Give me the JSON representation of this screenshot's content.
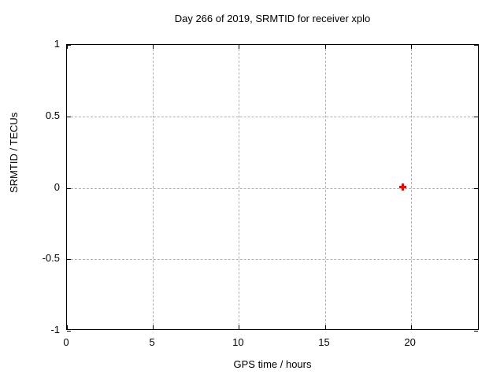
{
  "title": "Day 266 of 2019, SRMTID for receiver xplo",
  "chart_data": {
    "type": "scatter",
    "title": "Day 266 of 2019, SRMTID for receiver xplo",
    "xlabel": "GPS time / hours",
    "ylabel": "SRMTID / TECUs",
    "xlim": [
      0,
      24
    ],
    "ylim": [
      -1,
      1
    ],
    "xticks": [
      0,
      5,
      10,
      15,
      20
    ],
    "yticks": [
      -1,
      -0.5,
      0,
      0.5,
      1
    ],
    "grid": true,
    "legend": "none",
    "series": [
      {
        "name": "SRMTID",
        "marker": "plus",
        "color": "#ff0000",
        "points": [
          {
            "x": 19.6,
            "y": 0.0
          }
        ]
      }
    ]
  },
  "colors": {
    "background": "#ffffff",
    "plot_border": "#000000",
    "grid": "#b0b0b0",
    "text": "#000000",
    "marker": "#ff0000"
  }
}
